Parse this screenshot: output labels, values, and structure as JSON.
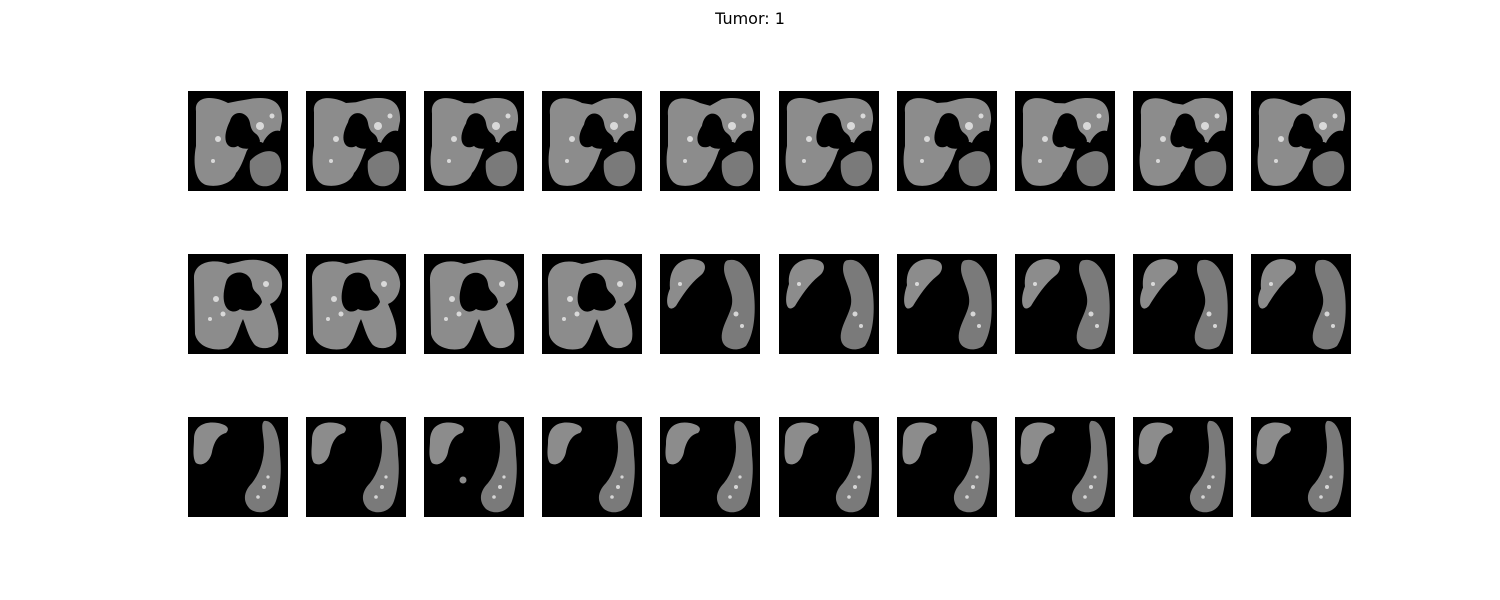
{
  "figure": {
    "title": "Tumor: 1",
    "background": "#ffffff",
    "grid": {
      "rows": 3,
      "cols": 10
    },
    "colors": {
      "slice_background": "#000000",
      "lung_tissue": "#8c8c8c",
      "lung_tissue_dark": "#7a7a7a",
      "vessel": "#e6e6e6"
    },
    "slices": [
      {
        "row": 0,
        "col": 0,
        "stage": "both_lungs_upper"
      },
      {
        "row": 0,
        "col": 1,
        "stage": "both_lungs_upper"
      },
      {
        "row": 0,
        "col": 2,
        "stage": "both_lungs_upper"
      },
      {
        "row": 0,
        "col": 3,
        "stage": "both_lungs_upper"
      },
      {
        "row": 0,
        "col": 4,
        "stage": "both_lungs_upper"
      },
      {
        "row": 0,
        "col": 5,
        "stage": "both_lungs_upper"
      },
      {
        "row": 0,
        "col": 6,
        "stage": "both_lungs_upper"
      },
      {
        "row": 0,
        "col": 7,
        "stage": "both_lungs_upper"
      },
      {
        "row": 0,
        "col": 8,
        "stage": "both_lungs_upper"
      },
      {
        "row": 0,
        "col": 9,
        "stage": "both_lungs_upper"
      },
      {
        "row": 1,
        "col": 0,
        "stage": "both_lungs_mid"
      },
      {
        "row": 1,
        "col": 1,
        "stage": "both_lungs_mid"
      },
      {
        "row": 1,
        "col": 2,
        "stage": "both_lungs_mid"
      },
      {
        "row": 1,
        "col": 3,
        "stage": "both_lungs_mid"
      },
      {
        "row": 1,
        "col": 4,
        "stage": "separated_lungs"
      },
      {
        "row": 1,
        "col": 5,
        "stage": "separated_lungs"
      },
      {
        "row": 1,
        "col": 6,
        "stage": "separated_lungs"
      },
      {
        "row": 1,
        "col": 7,
        "stage": "separated_lungs"
      },
      {
        "row": 1,
        "col": 8,
        "stage": "separated_lungs"
      },
      {
        "row": 1,
        "col": 9,
        "stage": "separated_lungs"
      },
      {
        "row": 2,
        "col": 0,
        "stage": "lower_lungs"
      },
      {
        "row": 2,
        "col": 1,
        "stage": "lower_lungs"
      },
      {
        "row": 2,
        "col": 2,
        "stage": "lower_lungs_nodule"
      },
      {
        "row": 2,
        "col": 3,
        "stage": "lower_lungs"
      },
      {
        "row": 2,
        "col": 4,
        "stage": "lower_lungs"
      },
      {
        "row": 2,
        "col": 5,
        "stage": "lower_lungs"
      },
      {
        "row": 2,
        "col": 6,
        "stage": "lower_lungs"
      },
      {
        "row": 2,
        "col": 7,
        "stage": "lower_lungs"
      },
      {
        "row": 2,
        "col": 8,
        "stage": "lower_lungs"
      },
      {
        "row": 2,
        "col": 9,
        "stage": "lower_lungs"
      }
    ]
  }
}
